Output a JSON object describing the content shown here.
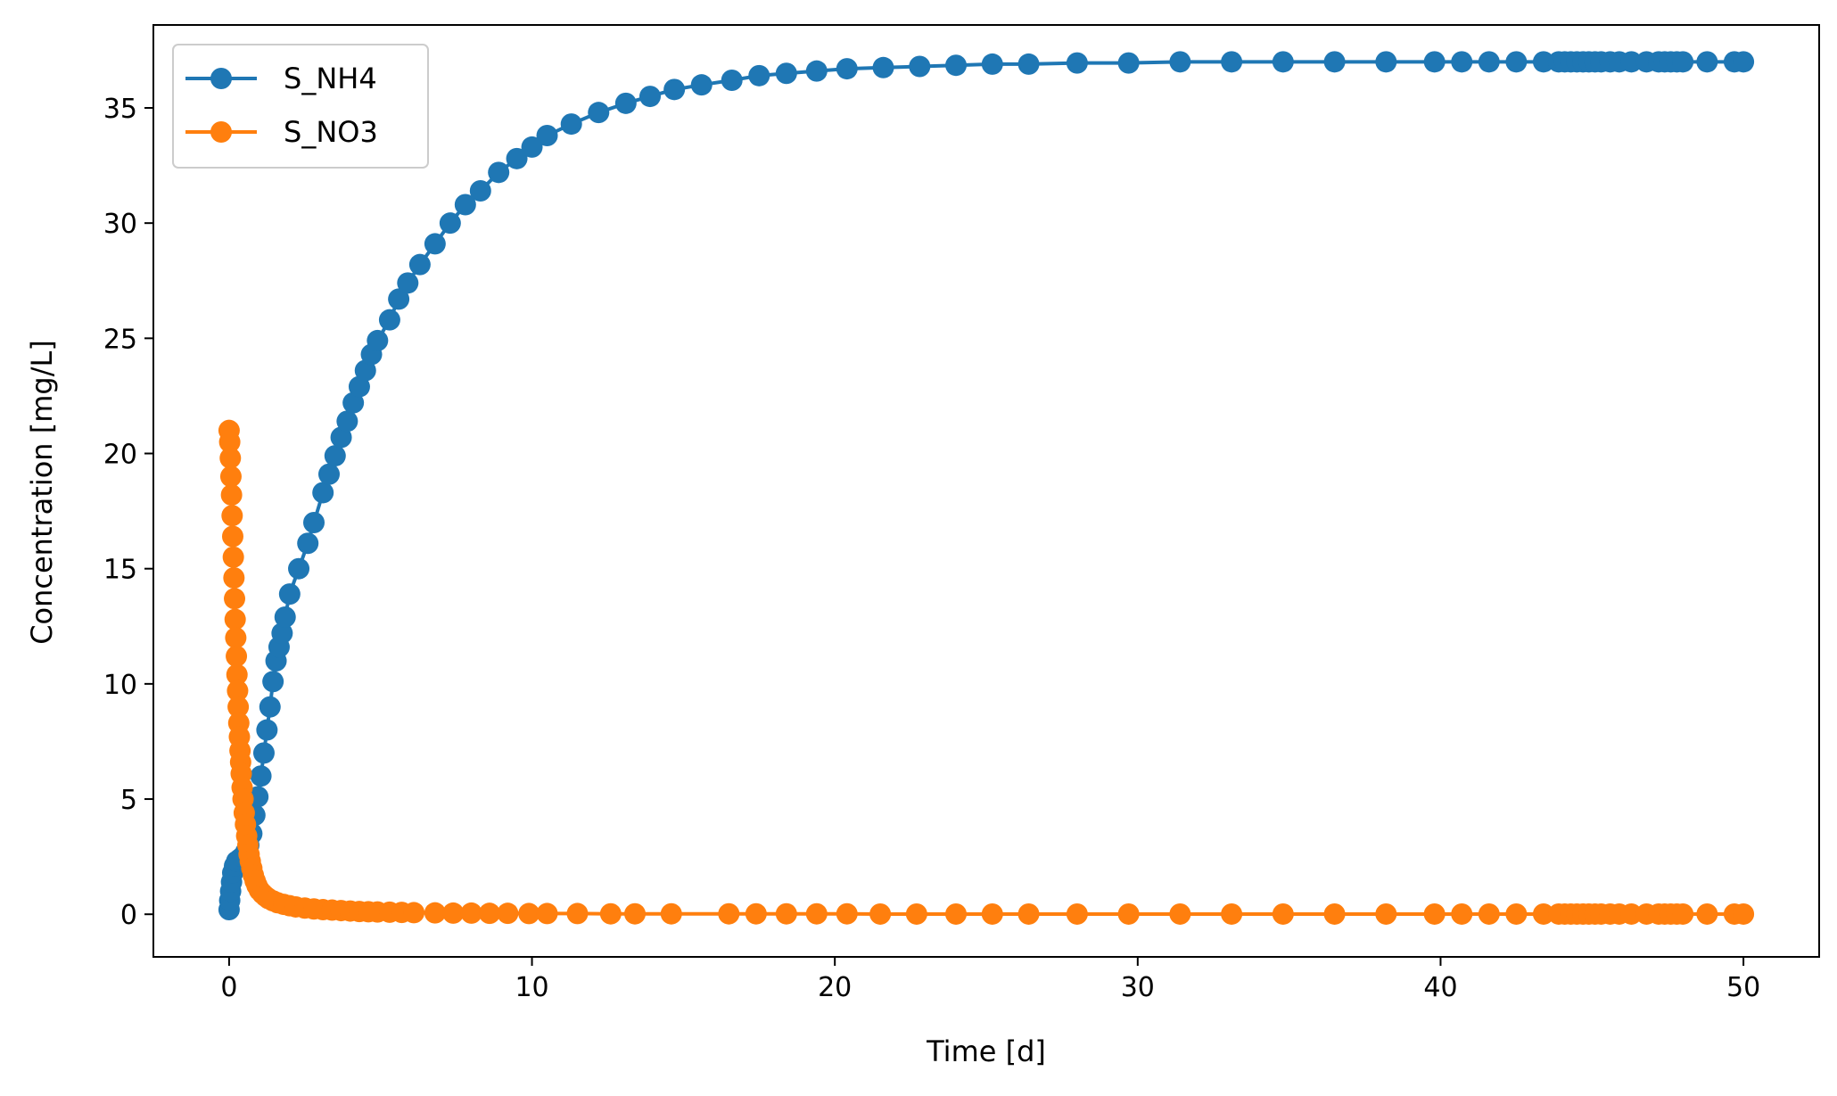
{
  "chart_data": {
    "type": "line",
    "title": "",
    "xlabel": "Time [d]",
    "ylabel": "Concentration [mg/L]",
    "xlim": [
      -2.5,
      52.5
    ],
    "ylim": [
      -1.85,
      38.6
    ],
    "xticks": [
      0,
      10,
      20,
      30,
      40,
      50
    ],
    "yticks": [
      0,
      5,
      10,
      15,
      20,
      25,
      30,
      35
    ],
    "grid": false,
    "legend_position": "upper-left",
    "series": [
      {
        "name": "S_NH4",
        "color": "#1f77b4",
        "marker": "circle",
        "points": [
          [
            0.0,
            0.2
          ],
          [
            0.02,
            0.6
          ],
          [
            0.05,
            1.0
          ],
          [
            0.08,
            1.4
          ],
          [
            0.12,
            1.8
          ],
          [
            0.18,
            2.1
          ],
          [
            0.25,
            2.3
          ],
          [
            0.35,
            2.4
          ],
          [
            0.45,
            2.5
          ],
          [
            0.55,
            2.7
          ],
          [
            0.65,
            3.0
          ],
          [
            0.75,
            3.5
          ],
          [
            0.85,
            4.3
          ],
          [
            0.95,
            5.1
          ],
          [
            1.05,
            6.0
          ],
          [
            1.15,
            7.0
          ],
          [
            1.25,
            8.0
          ],
          [
            1.35,
            9.0
          ],
          [
            1.45,
            10.1
          ],
          [
            1.55,
            11.0
          ],
          [
            1.65,
            11.6
          ],
          [
            1.75,
            12.2
          ],
          [
            1.85,
            12.9
          ],
          [
            2.0,
            13.9
          ],
          [
            2.3,
            15.0
          ],
          [
            2.6,
            16.1
          ],
          [
            2.8,
            17.0
          ],
          [
            3.1,
            18.3
          ],
          [
            3.3,
            19.1
          ],
          [
            3.5,
            19.9
          ],
          [
            3.7,
            20.7
          ],
          [
            3.9,
            21.4
          ],
          [
            4.1,
            22.2
          ],
          [
            4.3,
            22.9
          ],
          [
            4.5,
            23.6
          ],
          [
            4.7,
            24.3
          ],
          [
            4.9,
            24.9
          ],
          [
            5.3,
            25.8
          ],
          [
            5.6,
            26.7
          ],
          [
            5.9,
            27.4
          ],
          [
            6.3,
            28.2
          ],
          [
            6.8,
            29.1
          ],
          [
            7.3,
            30.0
          ],
          [
            7.8,
            30.8
          ],
          [
            8.3,
            31.4
          ],
          [
            8.9,
            32.2
          ],
          [
            9.5,
            32.8
          ],
          [
            10.0,
            33.3
          ],
          [
            10.5,
            33.8
          ],
          [
            11.3,
            34.3
          ],
          [
            12.2,
            34.8
          ],
          [
            13.1,
            35.2
          ],
          [
            13.9,
            35.5
          ],
          [
            14.7,
            35.8
          ],
          [
            15.6,
            36.0
          ],
          [
            16.6,
            36.2
          ],
          [
            17.5,
            36.4
          ],
          [
            18.4,
            36.5
          ],
          [
            19.4,
            36.6
          ],
          [
            20.4,
            36.7
          ],
          [
            21.6,
            36.75
          ],
          [
            22.8,
            36.8
          ],
          [
            24.0,
            36.85
          ],
          [
            25.2,
            36.9
          ],
          [
            26.4,
            36.9
          ],
          [
            28.0,
            36.95
          ],
          [
            29.7,
            36.95
          ],
          [
            31.4,
            37.0
          ],
          [
            33.1,
            37.0
          ],
          [
            34.8,
            37.0
          ],
          [
            36.5,
            37.0
          ],
          [
            38.2,
            37.0
          ],
          [
            39.8,
            37.0
          ],
          [
            40.7,
            37.0
          ],
          [
            41.6,
            37.0
          ],
          [
            42.5,
            37.0
          ],
          [
            43.4,
            37.0
          ],
          [
            43.9,
            37.0
          ],
          [
            44.1,
            37.0
          ],
          [
            44.3,
            37.0
          ],
          [
            44.5,
            37.0
          ],
          [
            44.7,
            37.0
          ],
          [
            44.9,
            37.0
          ],
          [
            45.1,
            37.0
          ],
          [
            45.3,
            37.0
          ],
          [
            45.6,
            37.0
          ],
          [
            45.9,
            37.0
          ],
          [
            46.3,
            37.0
          ],
          [
            46.8,
            37.0
          ],
          [
            47.2,
            37.0
          ],
          [
            47.4,
            37.0
          ],
          [
            47.6,
            37.0
          ],
          [
            47.8,
            37.0
          ],
          [
            48.0,
            37.0
          ],
          [
            48.8,
            37.0
          ],
          [
            49.7,
            37.0
          ],
          [
            50.0,
            37.0
          ]
        ]
      },
      {
        "name": "S_NO3",
        "color": "#ff7f0e",
        "marker": "circle",
        "points": [
          [
            0.0,
            21.0
          ],
          [
            0.02,
            20.5
          ],
          [
            0.04,
            19.8
          ],
          [
            0.06,
            19.0
          ],
          [
            0.08,
            18.2
          ],
          [
            0.1,
            17.3
          ],
          [
            0.12,
            16.4
          ],
          [
            0.14,
            15.5
          ],
          [
            0.16,
            14.6
          ],
          [
            0.18,
            13.7
          ],
          [
            0.2,
            12.8
          ],
          [
            0.22,
            12.0
          ],
          [
            0.24,
            11.2
          ],
          [
            0.26,
            10.4
          ],
          [
            0.28,
            9.7
          ],
          [
            0.3,
            9.0
          ],
          [
            0.32,
            8.3
          ],
          [
            0.34,
            7.7
          ],
          [
            0.36,
            7.1
          ],
          [
            0.38,
            6.6
          ],
          [
            0.4,
            6.1
          ],
          [
            0.43,
            5.5
          ],
          [
            0.46,
            5.0
          ],
          [
            0.5,
            4.4
          ],
          [
            0.54,
            3.9
          ],
          [
            0.58,
            3.4
          ],
          [
            0.62,
            3.0
          ],
          [
            0.66,
            2.6
          ],
          [
            0.7,
            2.3
          ],
          [
            0.75,
            2.0
          ],
          [
            0.8,
            1.7
          ],
          [
            0.86,
            1.45
          ],
          [
            0.92,
            1.25
          ],
          [
            1.0,
            1.05
          ],
          [
            1.1,
            0.9
          ],
          [
            1.2,
            0.78
          ],
          [
            1.3,
            0.68
          ],
          [
            1.45,
            0.58
          ],
          [
            1.6,
            0.5
          ],
          [
            1.8,
            0.43
          ],
          [
            2.0,
            0.37
          ],
          [
            2.2,
            0.32
          ],
          [
            2.5,
            0.27
          ],
          [
            2.8,
            0.23
          ],
          [
            3.1,
            0.2
          ],
          [
            3.4,
            0.18
          ],
          [
            3.7,
            0.16
          ],
          [
            4.0,
            0.14
          ],
          [
            4.3,
            0.12
          ],
          [
            4.6,
            0.11
          ],
          [
            4.9,
            0.1
          ],
          [
            5.3,
            0.09
          ],
          [
            5.7,
            0.08
          ],
          [
            6.1,
            0.07
          ],
          [
            6.8,
            0.06
          ],
          [
            7.4,
            0.05
          ],
          [
            8.0,
            0.05
          ],
          [
            8.6,
            0.04
          ],
          [
            9.2,
            0.04
          ],
          [
            9.9,
            0.03
          ],
          [
            10.5,
            0.03
          ],
          [
            11.5,
            0.03
          ],
          [
            12.6,
            0.02
          ],
          [
            13.4,
            0.02
          ],
          [
            14.6,
            0.02
          ],
          [
            16.5,
            0.02
          ],
          [
            17.4,
            0.02
          ],
          [
            18.4,
            0.02
          ],
          [
            19.4,
            0.02
          ],
          [
            20.4,
            0.02
          ],
          [
            21.5,
            0.01
          ],
          [
            22.7,
            0.01
          ],
          [
            24.0,
            0.01
          ],
          [
            25.2,
            0.01
          ],
          [
            26.4,
            0.01
          ],
          [
            28.0,
            0.01
          ],
          [
            29.7,
            0.01
          ],
          [
            31.4,
            0.01
          ],
          [
            33.1,
            0.01
          ],
          [
            34.8,
            0.01
          ],
          [
            36.5,
            0.01
          ],
          [
            38.2,
            0.01
          ],
          [
            39.8,
            0.01
          ],
          [
            40.7,
            0.01
          ],
          [
            41.6,
            0.01
          ],
          [
            42.5,
            0.01
          ],
          [
            43.4,
            0.01
          ],
          [
            43.9,
            0.01
          ],
          [
            44.1,
            0.01
          ],
          [
            44.3,
            0.01
          ],
          [
            44.5,
            0.01
          ],
          [
            44.7,
            0.01
          ],
          [
            44.9,
            0.01
          ],
          [
            45.1,
            0.01
          ],
          [
            45.3,
            0.01
          ],
          [
            45.6,
            0.01
          ],
          [
            45.9,
            0.01
          ],
          [
            46.3,
            0.01
          ],
          [
            46.8,
            0.01
          ],
          [
            47.2,
            0.01
          ],
          [
            47.4,
            0.01
          ],
          [
            47.6,
            0.01
          ],
          [
            47.8,
            0.01
          ],
          [
            48.0,
            0.01
          ],
          [
            48.8,
            0.01
          ],
          [
            49.7,
            0.01
          ],
          [
            50.0,
            0.01
          ]
        ]
      }
    ]
  }
}
